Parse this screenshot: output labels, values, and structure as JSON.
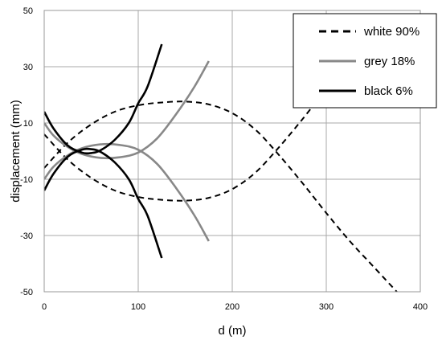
{
  "chart_data": {
    "type": "line",
    "xlabel": "d (m)",
    "ylabel": "displacement (mm)",
    "xlim": [
      0,
      400
    ],
    "ylim": [
      -50,
      50
    ],
    "x_ticks": [
      "0",
      "100",
      "200",
      "300",
      "400"
    ],
    "y_ticks": [
      "-50",
      "-30",
      "-10",
      "10",
      "30",
      "50"
    ],
    "x_tick_values": [
      0,
      100,
      200,
      300,
      400
    ],
    "y_tick_values": [
      -50,
      -30,
      -10,
      10,
      30,
      50
    ],
    "grid": true,
    "legend_position": "top-right",
    "series": [
      {
        "name": "white 90%",
        "color": "#000000",
        "style": "dashed",
        "curves": [
          {
            "x": [
              0,
              25,
              50,
              75,
              100,
              125,
              150,
              175,
              200,
              225,
              250,
              275,
              300,
              325,
              350,
              375
            ],
            "y": [
              -6,
              3,
              9.5,
              14,
              16.3,
              17.3,
              17.6,
              16.6,
              13.5,
              7.5,
              -1.5,
              -11.5,
              -22,
              -32,
              -41,
              -50
            ]
          },
          {
            "x": [
              0,
              25,
              50,
              75,
              100,
              125,
              150,
              175,
              200,
              225,
              250,
              275,
              300,
              310
            ],
            "y": [
              6,
              -3,
              -9.5,
              -14,
              -16.3,
              -17.3,
              -17.6,
              -16.6,
              -13.5,
              -7.5,
              1.5,
              11.5,
              22,
              25
            ]
          }
        ]
      },
      {
        "name": "grey 18%",
        "color": "#888888",
        "style": "solid",
        "curves": [
          {
            "x": [
              0,
              10,
              25,
              40,
              60,
              80,
              100,
              120,
              140,
              160,
              175
            ],
            "y": [
              -10,
              -5.5,
              -1.5,
              1,
              2.4,
              2.2,
              0.5,
              -4.5,
              -13,
              -23,
              -32
            ]
          },
          {
            "x": [
              0,
              10,
              25,
              40,
              60,
              80,
              100,
              120,
              140,
              160,
              175
            ],
            "y": [
              10,
              5.5,
              1.5,
              -1,
              -2.4,
              -2.2,
              -0.5,
              4.5,
              13,
              23,
              32
            ]
          }
        ]
      },
      {
        "name": "black 6%",
        "color": "#000000",
        "style": "solid",
        "curves": [
          {
            "x": [
              0,
              10,
              25,
              40,
              50,
              60,
              75,
              90,
              100,
              110,
              125
            ],
            "y": [
              -14,
              -8,
              -2,
              0.5,
              0.7,
              -0.3,
              -4,
              -10,
              -17,
              -23,
              -38
            ]
          },
          {
            "x": [
              0,
              10,
              25,
              40,
              50,
              60,
              75,
              90,
              100,
              110,
              125
            ],
            "y": [
              14,
              8,
              2,
              -0.5,
              -0.7,
              0.3,
              4,
              10,
              17,
              23,
              38
            ]
          }
        ]
      }
    ]
  }
}
